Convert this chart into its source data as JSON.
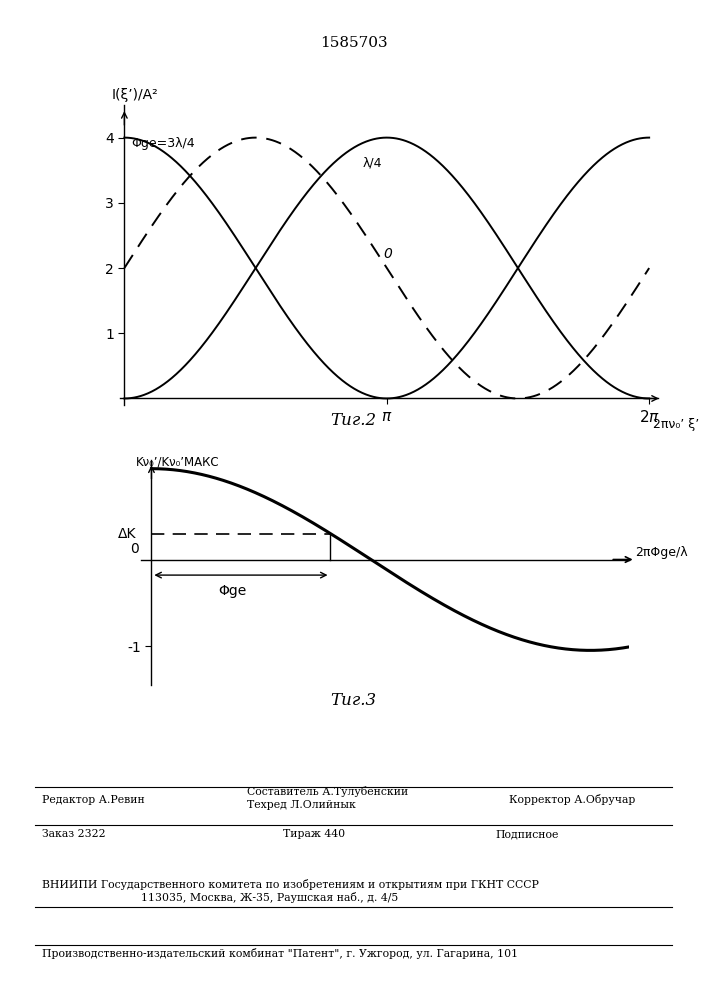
{
  "patent_number": "1585703",
  "fig2_caption": "Τиг.2",
  "fig3_caption": "Τиг.3",
  "fig2_ylabel": "I(ξ’)/A²",
  "fig2_xlabel": "2πν₀’ ξ’",
  "fig2_curve_solid1_label": "Φge=3λ/4",
  "fig2_curve_dashed_label": "λ/4",
  "fig2_curve_solid2_label": "0",
  "fig3_ylabel": "Kν₀’/Kν₀’МАКС",
  "fig3_xlabel": "2πΦge/λ",
  "fig3_ytick_minus1": "-1",
  "fig3_dk_label": "ΔK",
  "fig3_fge_label": "Φge",
  "footer_editor": "Редактор А.Ревин",
  "footer_compiler": "Составитель А.Тулубенский",
  "footer_techred": "Техред Л.Олийнык",
  "footer_corrector": "Корректор А.Обручар",
  "footer_order": "Заказ 2322",
  "footer_tirazh": "Тираж 440",
  "footer_podp": "Подписное",
  "footer_vniipи": "ВНИИПИ Государственного комитета по изобретениям и открытиям при ГКНТ СССР",
  "footer_address": "113035, Москва, Ж-35, Раушская наб., д. 4/5",
  "footer_patent": "Производственно-издательский комбинат \"Патент\", г. Ужгород, ул. Гагарина, 101"
}
